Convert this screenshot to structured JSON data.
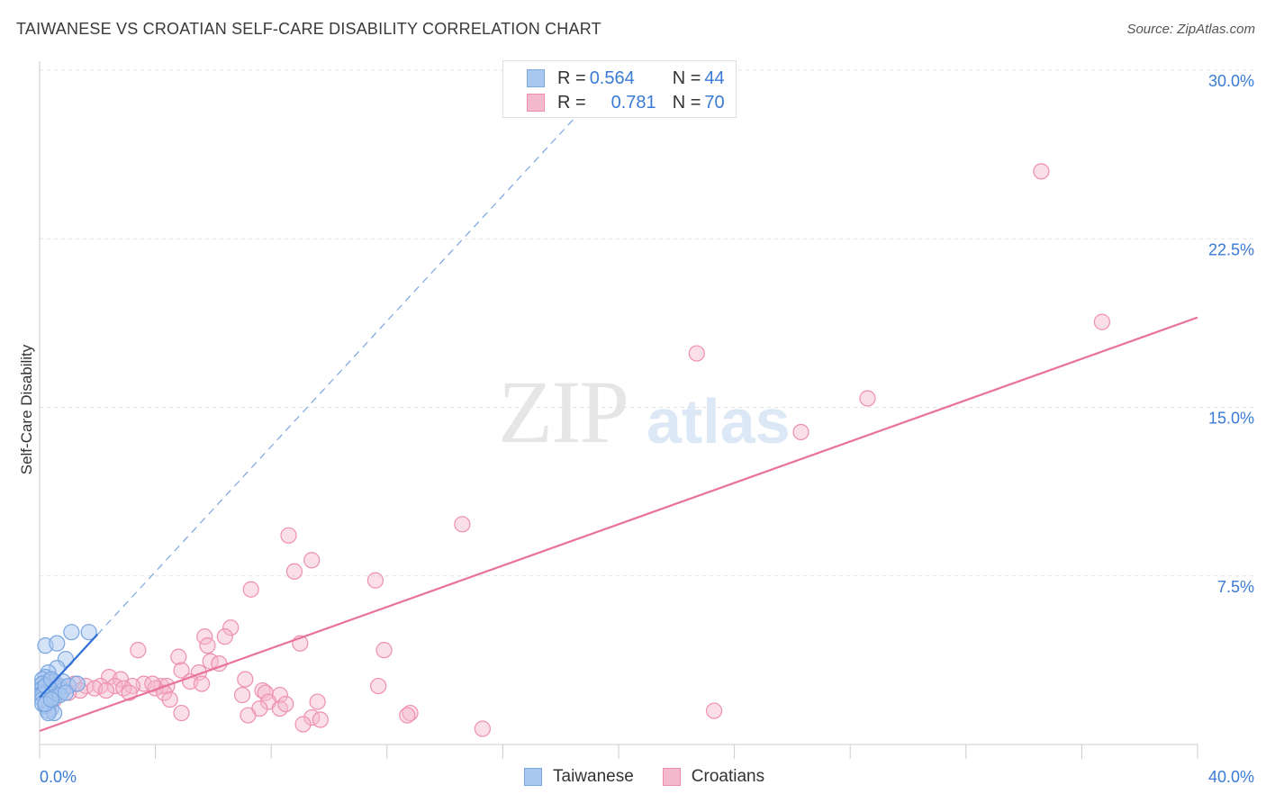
{
  "title": "TAIWANESE VS CROATIAN SELF-CARE DISABILITY CORRELATION CHART",
  "source": "Source: ZipAtlas.com",
  "watermark": {
    "zip": "ZIP",
    "atlas": "atlas"
  },
  "legend": {
    "rows": [
      {
        "r_label": "R =",
        "r_value": "0.564",
        "n_label": "N =",
        "n_value": "44"
      },
      {
        "r_label": "R =",
        "r_value": "0.781",
        "n_label": "N =",
        "n_value": "70"
      }
    ]
  },
  "bottom_legend": {
    "taiwanese": "Taiwanese",
    "croatians": "Croatians"
  },
  "colors": {
    "taiwanese_fill": "#a9c8f0",
    "taiwanese_stroke": "#7aa6e0",
    "taiwanese_line": "#2f6fd6",
    "croatians_fill": "#f4b9cc",
    "croatians_stroke": "#ee8fad",
    "croatians_line": "#e8729a",
    "tick_label": "#3a7bd5",
    "grid": "#e2e2e2"
  },
  "chart_data": {
    "type": "scatter",
    "title": "TAIWANESE VS CROATIAN SELF-CARE DISABILITY CORRELATION CHART",
    "xlabel": "",
    "ylabel": "Self-Care Disability",
    "xlim": [
      0,
      40
    ],
    "ylim": [
      0,
      30
    ],
    "x_tick_labels": [
      "0.0%",
      "40.0%"
    ],
    "y_ticks": [
      7.5,
      15.0,
      22.5,
      30.0
    ],
    "y_tick_labels": [
      "7.5%",
      "15.0%",
      "22.5%",
      "30.0%"
    ],
    "grid": true,
    "legend_position": "top-center",
    "series": [
      {
        "name": "Taiwanese",
        "r": 0.564,
        "n": 44,
        "trend": {
          "x": [
            0.0,
            2.0
          ],
          "y": [
            2.1,
            4.9
          ]
        },
        "trend_extension": {
          "x": [
            2.0,
            18.5
          ],
          "y": [
            4.9,
            27.9
          ]
        },
        "points": [
          [
            0.2,
            4.4
          ],
          [
            0.6,
            4.5
          ],
          [
            1.1,
            5.0
          ],
          [
            1.7,
            5.0
          ],
          [
            0.9,
            3.8
          ],
          [
            0.6,
            3.4
          ],
          [
            0.3,
            3.2
          ],
          [
            0.2,
            3.0
          ],
          [
            0.3,
            2.8
          ],
          [
            0.4,
            2.6
          ],
          [
            0.5,
            2.8
          ],
          [
            0.7,
            2.6
          ],
          [
            0.2,
            2.4
          ],
          [
            0.3,
            2.5
          ],
          [
            0.5,
            2.4
          ],
          [
            0.6,
            2.3
          ],
          [
            0.4,
            2.2
          ],
          [
            0.3,
            2.1
          ],
          [
            0.2,
            2.0
          ],
          [
            0.3,
            1.9
          ],
          [
            0.2,
            1.7
          ],
          [
            0.4,
            1.6
          ],
          [
            0.3,
            1.5
          ],
          [
            0.5,
            1.4
          ],
          [
            0.3,
            1.4
          ],
          [
            0.1,
            2.9
          ],
          [
            0.1,
            2.7
          ],
          [
            0.1,
            2.5
          ],
          [
            0.1,
            2.3
          ],
          [
            0.1,
            2.2
          ],
          [
            0.1,
            2.0
          ],
          [
            0.1,
            1.8
          ],
          [
            0.2,
            2.6
          ],
          [
            0.4,
            2.9
          ],
          [
            0.6,
            2.5
          ],
          [
            0.8,
            2.4
          ],
          [
            0.8,
            2.8
          ],
          [
            1.0,
            2.6
          ],
          [
            1.3,
            2.7
          ],
          [
            0.5,
            2.1
          ],
          [
            0.7,
            2.2
          ],
          [
            0.2,
            1.8
          ],
          [
            0.4,
            2.0
          ],
          [
            0.9,
            2.3
          ]
        ]
      },
      {
        "name": "Croatians",
        "r": 0.781,
        "n": 70,
        "trend": {
          "x": [
            0.0,
            40.0
          ],
          "y": [
            0.6,
            19.0
          ]
        },
        "points": [
          [
            34.6,
            25.5
          ],
          [
            36.7,
            18.8
          ],
          [
            22.7,
            17.4
          ],
          [
            28.6,
            15.4
          ],
          [
            26.3,
            13.9
          ],
          [
            14.6,
            9.8
          ],
          [
            8.6,
            9.3
          ],
          [
            9.4,
            8.2
          ],
          [
            8.8,
            7.7
          ],
          [
            11.6,
            7.3
          ],
          [
            7.3,
            6.9
          ],
          [
            6.6,
            5.2
          ],
          [
            5.7,
            4.8
          ],
          [
            6.4,
            4.8
          ],
          [
            3.4,
            4.2
          ],
          [
            4.8,
            3.9
          ],
          [
            5.8,
            4.4
          ],
          [
            5.9,
            3.7
          ],
          [
            6.2,
            3.6
          ],
          [
            9.0,
            4.5
          ],
          [
            11.9,
            4.2
          ],
          [
            4.9,
            3.3
          ],
          [
            5.5,
            3.2
          ],
          [
            2.4,
            3.0
          ],
          [
            2.8,
            2.9
          ],
          [
            5.2,
            2.8
          ],
          [
            7.1,
            2.9
          ],
          [
            3.6,
            2.7
          ],
          [
            4.2,
            2.6
          ],
          [
            4.4,
            2.6
          ],
          [
            5.6,
            2.7
          ],
          [
            11.7,
            2.6
          ],
          [
            1.2,
            2.7
          ],
          [
            1.6,
            2.6
          ],
          [
            2.1,
            2.6
          ],
          [
            2.6,
            2.6
          ],
          [
            3.2,
            2.6
          ],
          [
            4.0,
            2.5
          ],
          [
            3.9,
            2.7
          ],
          [
            1.4,
            2.4
          ],
          [
            1.9,
            2.5
          ],
          [
            2.3,
            2.4
          ],
          [
            2.9,
            2.5
          ],
          [
            3.1,
            2.3
          ],
          [
            4.3,
            2.3
          ],
          [
            0.6,
            2.6
          ],
          [
            0.8,
            2.4
          ],
          [
            1.0,
            2.3
          ],
          [
            0.4,
            2.5
          ],
          [
            0.3,
            2.2
          ],
          [
            0.5,
            2.0
          ],
          [
            7.7,
            2.4
          ],
          [
            7.8,
            2.3
          ],
          [
            8.3,
            2.2
          ],
          [
            7.0,
            2.2
          ],
          [
            4.5,
            2.0
          ],
          [
            7.9,
            1.9
          ],
          [
            9.6,
            1.9
          ],
          [
            7.6,
            1.6
          ],
          [
            8.3,
            1.6
          ],
          [
            4.9,
            1.4
          ],
          [
            12.8,
            1.4
          ],
          [
            12.7,
            1.3
          ],
          [
            23.3,
            1.5
          ],
          [
            9.4,
            1.2
          ],
          [
            9.7,
            1.1
          ],
          [
            9.1,
            0.9
          ],
          [
            7.2,
            1.3
          ],
          [
            15.3,
            0.7
          ],
          [
            8.5,
            1.8
          ]
        ]
      }
    ]
  }
}
